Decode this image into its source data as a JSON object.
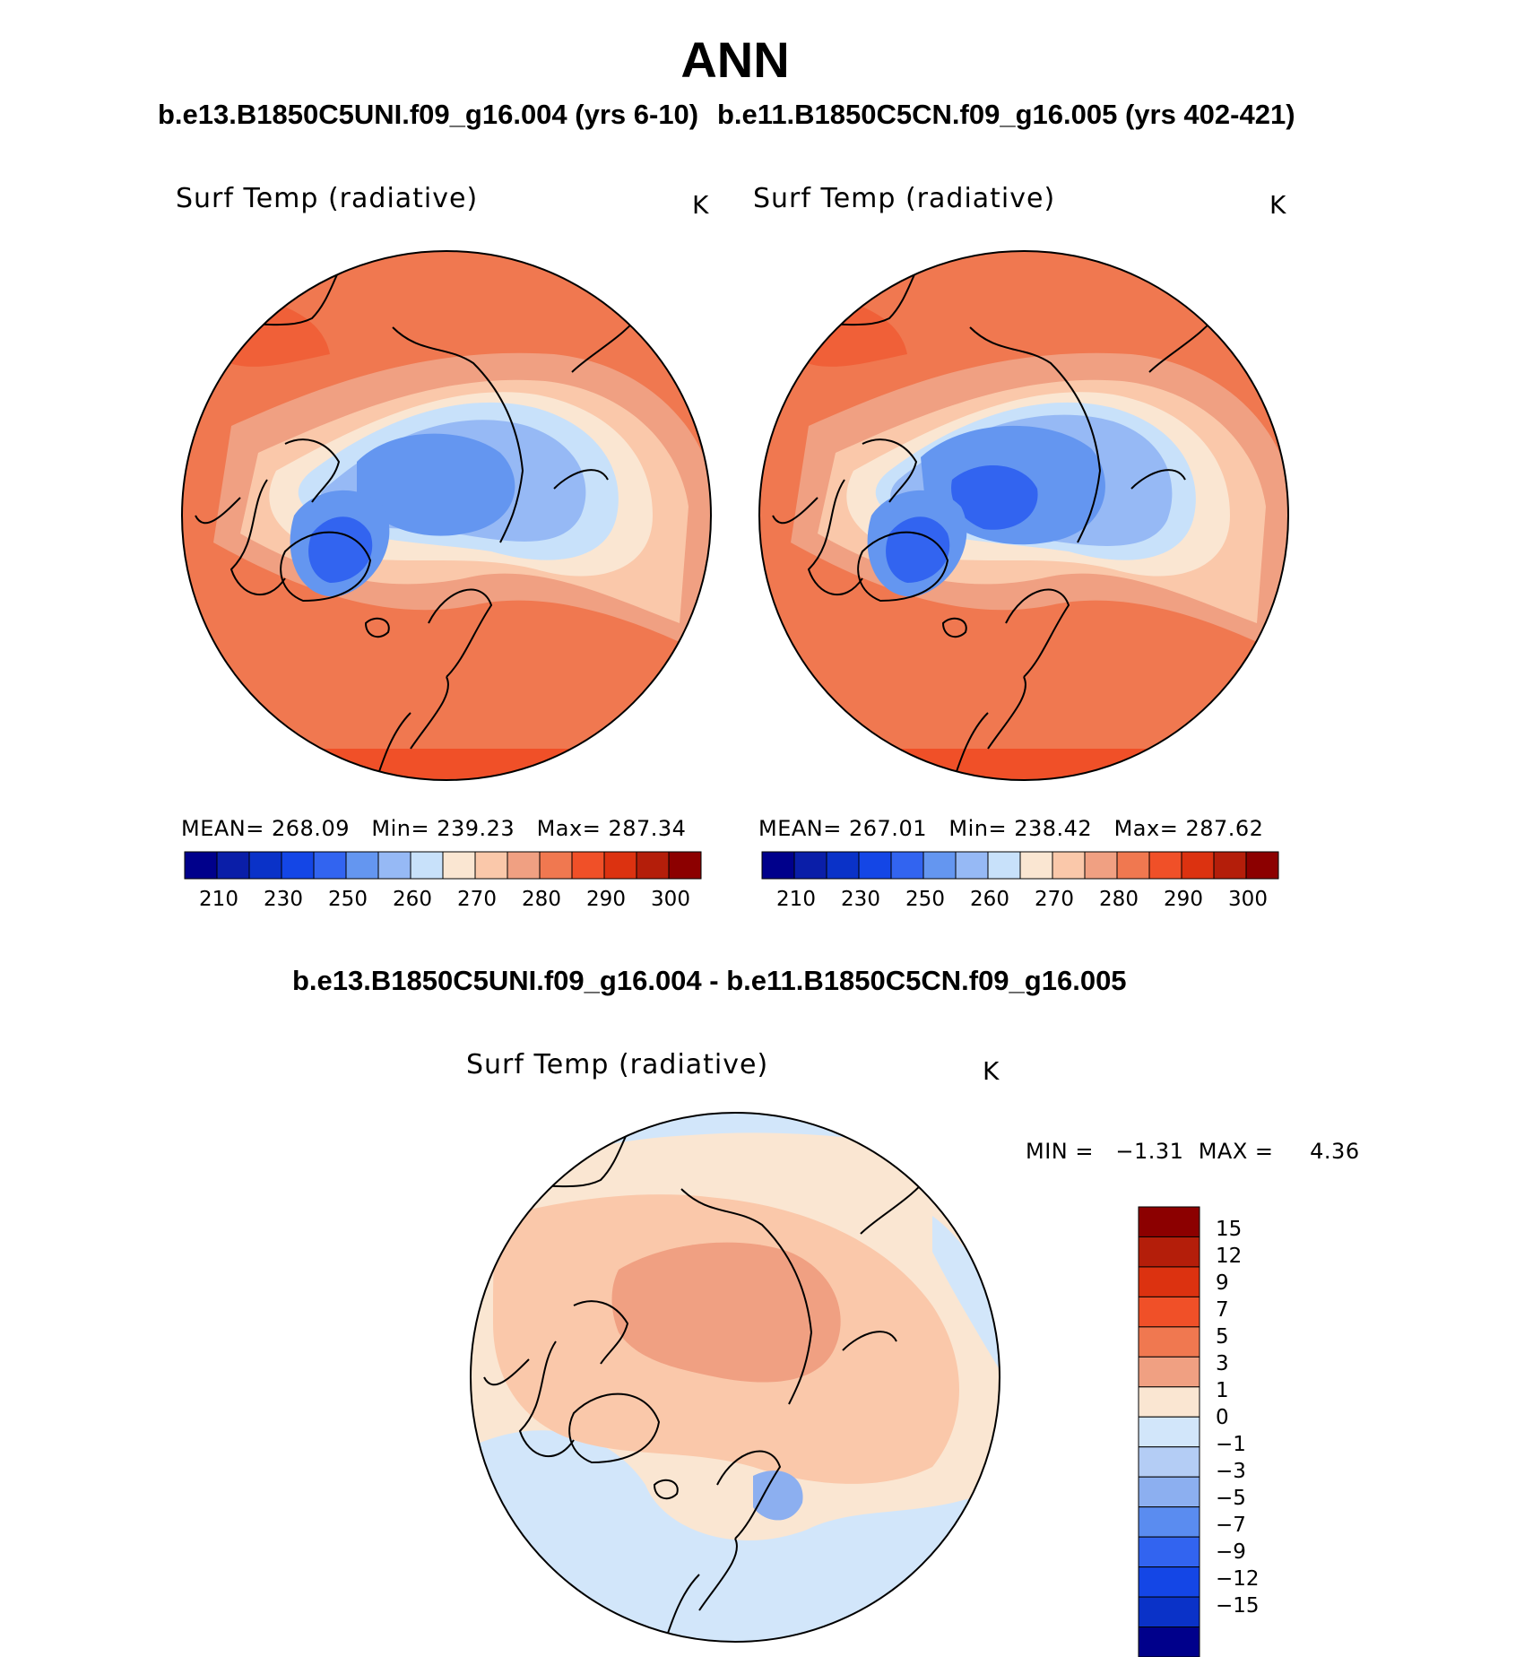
{
  "title": "ANN",
  "colors": {
    "temp_colorbar": [
      "#00008b",
      "#0a1ea8",
      "#0a32c8",
      "#1446e6",
      "#3264f0",
      "#6496f0",
      "#96b9f5",
      "#c8e1fa",
      "#fae6d2",
      "#fac8aa",
      "#f0a082",
      "#f07850",
      "#f05028",
      "#dc3210",
      "#b41e0a",
      "#8c0000"
    ],
    "diff_colorbar": [
      "#8c0000",
      "#b41e0a",
      "#dc3210",
      "#f05028",
      "#f07850",
      "#f0a082",
      "#fae6d2",
      "#d2e6fa",
      "#b4cdf5",
      "#8caff0",
      "#5a8cf0",
      "#3264f0",
      "#1446e6",
      "#0a32c8",
      "#00008b"
    ]
  },
  "panels": [
    {
      "case_title": "b.e13.B1850C5UNI.f09_g16.004 (yrs 6-10)",
      "variable": "Surf Temp (radiative)",
      "units": "K",
      "stats": {
        "mean_label": "MEAN=",
        "mean": "268.09",
        "min_label": "Min=",
        "min": "239.23",
        "max_label": "Max=",
        "max": "287.34"
      },
      "colorbar_ticks": [
        "210",
        "230",
        "250",
        "260",
        "270",
        "280",
        "290",
        "300"
      ]
    },
    {
      "case_title": "b.e11.B1850C5CN.f09_g16.005 (yrs 402-421)",
      "variable": "Surf Temp (radiative)",
      "units": "K",
      "stats": {
        "mean_label": "MEAN=",
        "mean": "267.01",
        "min_label": "Min=",
        "min": "238.42",
        "max_label": "Max=",
        "max": "287.62"
      },
      "colorbar_ticks": [
        "210",
        "230",
        "250",
        "260",
        "270",
        "280",
        "290",
        "300"
      ]
    }
  ],
  "difference": {
    "case_title": "b.e13.B1850C5UNI.f09_g16.004 - b.e11.B1850C5CN.f09_g16.005",
    "variable": "Surf Temp (radiative)",
    "units": "K",
    "min_label": "MIN =",
    "min": "−1.31",
    "max_label": "MAX =",
    "max": "4.36",
    "colorbar_ticks": [
      "15",
      "12",
      "9",
      "7",
      "5",
      "3",
      "1",
      "0",
      "−1",
      "−3",
      "−5",
      "−7",
      "−9",
      "−12",
      "−15"
    ]
  }
}
